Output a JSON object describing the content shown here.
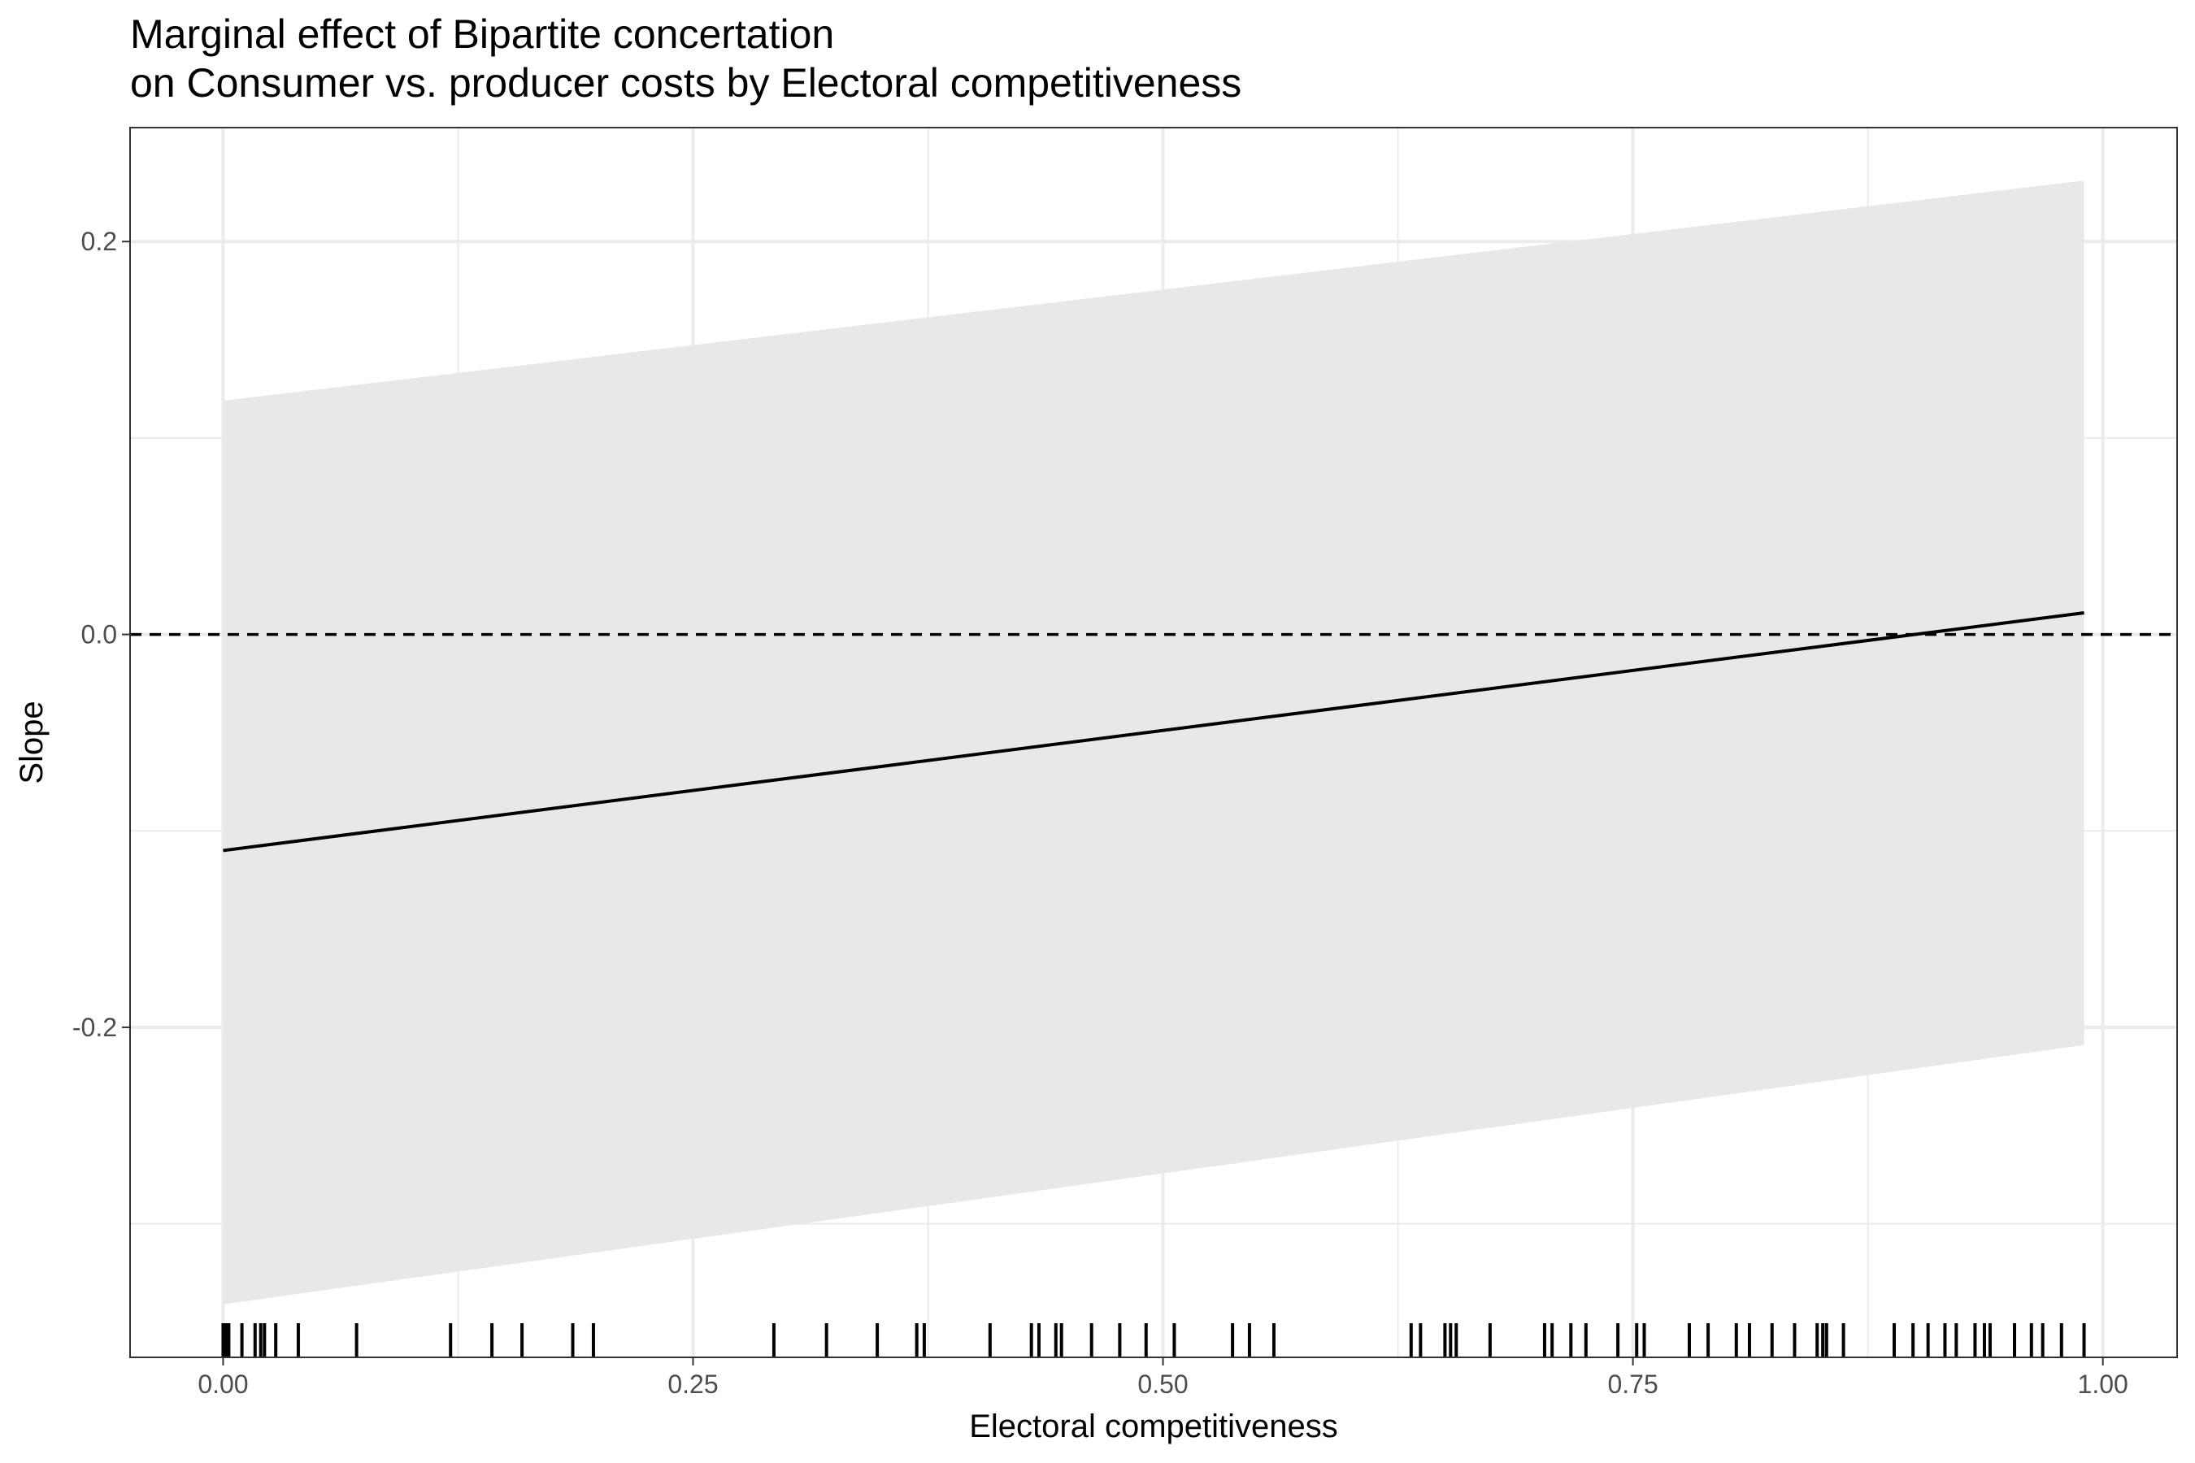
{
  "chart_data": {
    "type": "line",
    "title": "Marginal effect of Bipartite concertation",
    "subtitle": "on Consumer vs. producer costs by Electoral competitiveness",
    "xlabel": "Electoral competitiveness",
    "ylabel": "Slope",
    "xlim": [
      -0.0495,
      1.0395
    ],
    "ylim": [
      -0.368,
      0.258
    ],
    "x_ticks": [
      0.0,
      0.25,
      0.5,
      0.75,
      1.0
    ],
    "x_tick_labels": [
      "0.00",
      "0.25",
      "0.50",
      "0.75",
      "1.00"
    ],
    "y_ticks": [
      -0.2,
      0.0,
      0.2
    ],
    "y_tick_labels": [
      "-0.2",
      "0.0",
      "0.2"
    ],
    "y_minor_ticks": [
      -0.3,
      -0.1,
      0.1
    ],
    "x_minor_ticks": [
      0.125,
      0.375,
      0.625,
      0.875
    ],
    "grid": true,
    "reference_line": {
      "y": 0.0,
      "style": "dashed"
    },
    "series": [
      {
        "x": [
          0.0,
          0.99
        ],
        "y": [
          -0.11,
          0.011
        ]
      }
    ],
    "confidence_band": {
      "x": [
        0.0,
        0.99
      ],
      "lower": [
        -0.341,
        -0.209
      ],
      "upper": [
        0.119,
        0.231
      ]
    },
    "rug_x": [
      0.0,
      0.001,
      0.002,
      0.003,
      0.01,
      0.017,
      0.02,
      0.022,
      0.028,
      0.04,
      0.071,
      0.121,
      0.143,
      0.159,
      0.186,
      0.197,
      0.293,
      0.321,
      0.348,
      0.369,
      0.373,
      0.408,
      0.43,
      0.434,
      0.443,
      0.446,
      0.462,
      0.477,
      0.491,
      0.506,
      0.537,
      0.546,
      0.559,
      0.632,
      0.637,
      0.65,
      0.653,
      0.656,
      0.674,
      0.703,
      0.707,
      0.717,
      0.725,
      0.742,
      0.752,
      0.756,
      0.78,
      0.79,
      0.805,
      0.812,
      0.824,
      0.836,
      0.848,
      0.851,
      0.853,
      0.862,
      0.889,
      0.899,
      0.907,
      0.916,
      0.922,
      0.932,
      0.937,
      0.94,
      0.953,
      0.962,
      0.968,
      0.978,
      0.99
    ],
    "colors": {
      "line": "#000000",
      "band": "#e8e8e8",
      "grid": "#ebebeb",
      "panel_border": "#333333"
    }
  }
}
